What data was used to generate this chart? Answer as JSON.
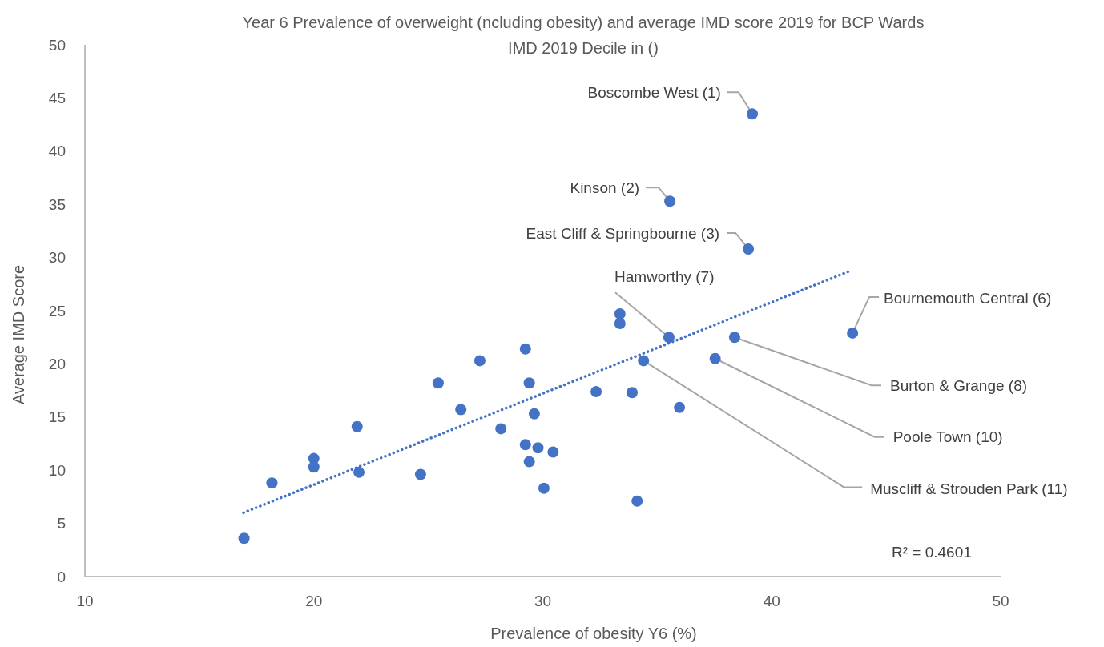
{
  "chart_data": {
    "type": "scatter",
    "title": "Year 6 Prevalence of overweight (ncluding obesity) and average IMD score 2019 for BCP Wards",
    "subtitle": "IMD 2019 Decile in ()",
    "xlabel": "Prevalence of obesity Y6 (%)",
    "ylabel": "Average IMD Score",
    "xlim": [
      10,
      50
    ],
    "xticks": [
      10,
      20,
      30,
      40,
      50
    ],
    "ylim": [
      0,
      50
    ],
    "yticks": [
      0,
      5,
      10,
      15,
      20,
      25,
      30,
      35,
      40,
      45,
      50
    ],
    "grid": false,
    "marker": "circle",
    "series": [
      {
        "color": "#4472c4",
        "x": [
          16.95,
          18.17,
          20.0,
          20.0,
          21.89,
          21.97,
          24.66,
          25.43,
          26.42,
          27.25,
          28.17,
          29.24,
          29.41,
          29.63,
          29.24,
          29.79,
          30.45,
          29.41,
          30.05,
          32.33,
          33.9,
          35.97,
          34.12,
          33.37,
          33.37,
          35.51,
          38.38,
          37.53,
          34.4,
          39.15,
          35.55,
          38.98,
          43.53
        ],
        "values": [
          3.6,
          8.8,
          11.1,
          10.3,
          14.1,
          9.8,
          9.6,
          18.2,
          15.7,
          20.3,
          13.9,
          21.4,
          18.2,
          15.3,
          12.4,
          12.1,
          11.7,
          10.8,
          8.3,
          17.4,
          17.3,
          15.9,
          7.1,
          24.7,
          23.8,
          22.5,
          22.5,
          20.5,
          20.3,
          43.5,
          35.3,
          30.8,
          22.9
        ]
      },
      {
        "type": "line",
        "color": "#4472c4",
        "line_style": "dotted",
        "marker": "none",
        "x": [
          16.93,
          43.5
        ],
        "values": [
          6.0,
          28.8
        ]
      }
    ],
    "annotations": [
      {
        "text": "Boscombe West (1)",
        "x": 39.15,
        "y": 43.5
      },
      {
        "text": "Kinson (2)",
        "x": 35.55,
        "y": 35.3
      },
      {
        "text": "East Cliff & Springbourne (3)",
        "x": 38.98,
        "y": 30.8
      },
      {
        "text": "Hamworthy (7)",
        "x": 35.51,
        "y": 22.5
      },
      {
        "text": "Bournemouth Central (6)",
        "x": 43.53,
        "y": 22.9
      },
      {
        "text": "Burton & Grange (8)",
        "x": 38.38,
        "y": 22.5
      },
      {
        "text": "Poole Town (10)",
        "x": 37.53,
        "y": 20.5
      },
      {
        "text": "Muscliff & Strouden Park (11)",
        "x": 34.4,
        "y": 20.3
      },
      "R² = 0.4601"
    ]
  }
}
